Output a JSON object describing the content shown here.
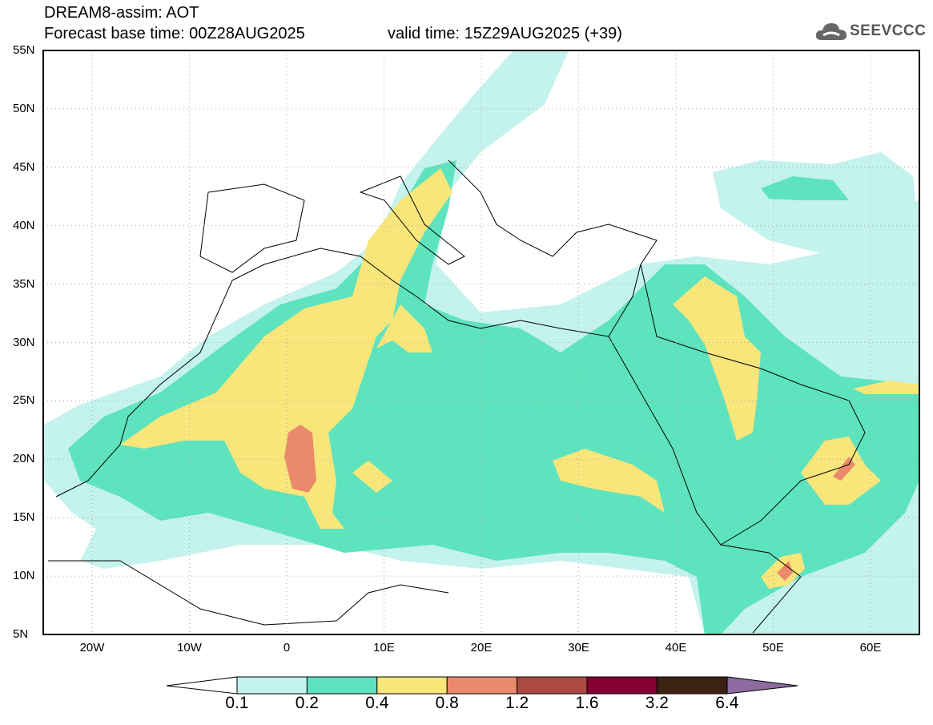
{
  "title": "DREAM8-assim: AOT",
  "base_time": "Forecast base time: 00Z28AUG2025",
  "valid_time": "valid time: 15Z29AUG2025 (+39)",
  "logo": "SEEVCCC",
  "lat_labels": [
    "55N",
    "50N",
    "45N",
    "40N",
    "35N",
    "30N",
    "25N",
    "20N",
    "15N",
    "10N",
    "5N"
  ],
  "lon_labels": [
    "20W",
    "10W",
    "0",
    "10E",
    "20E",
    "30E",
    "40E",
    "50E",
    "60E"
  ],
  "colorbar": {
    "ticks": [
      "0.1",
      "0.2",
      "0.4",
      "0.8",
      "1.2",
      "1.6",
      "3.2",
      "6.4"
    ],
    "colors": [
      "#ffffff",
      "#c4f2ec",
      "#5ee3bf",
      "#f8e67a",
      "#ea8a6a",
      "#ac4a42",
      "#840030",
      "#3b2212",
      "#8d6aa0"
    ]
  }
}
